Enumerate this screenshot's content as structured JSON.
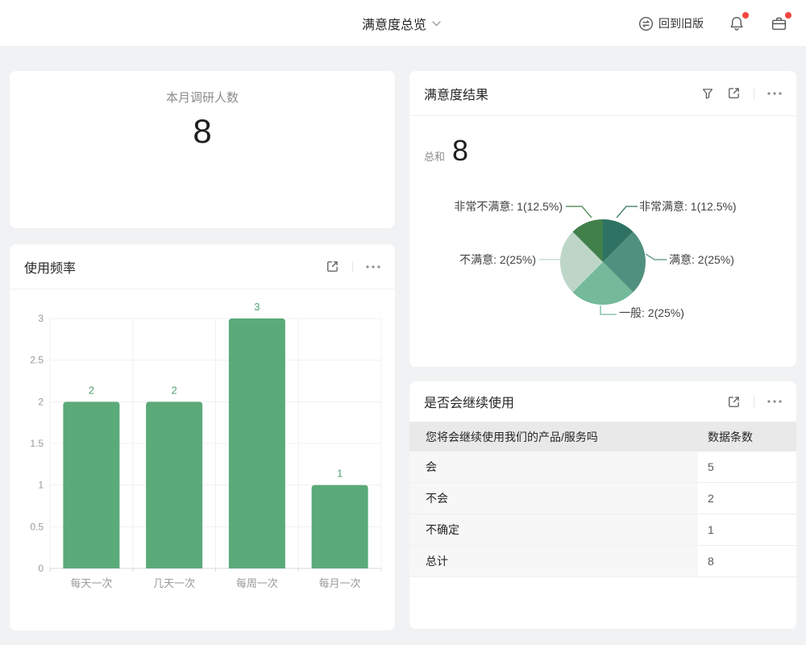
{
  "header": {
    "title": "满意度总览",
    "title_icon": "chevron-down-icon",
    "back_to_old_label": "回到旧版",
    "back_to_old_icon": "switch-version-icon",
    "notification_icon": "bell-icon",
    "workbench_icon": "briefcase-icon",
    "notification_badge": true,
    "workbench_badge": true,
    "badge_color": "#f5453d"
  },
  "cards": {
    "monthly": {
      "title": "本月调研人数",
      "value": "8"
    }
  },
  "card_action_icons": [
    "filter-icon",
    "export-icon",
    "more-icon"
  ],
  "colors": {
    "background": "#f1f2f4",
    "card": "#ffffff",
    "bar_green": "#5baa7a",
    "value_label_green": "#53a274",
    "axis_text": "#999999",
    "gridline": "#f0f0f0",
    "axis_line": "#d9d9d9"
  },
  "chart_data": [
    {
      "type": "bar",
      "title": "使用频率",
      "categories": [
        "每天一次",
        "几天一次",
        "每周一次",
        "每月一次"
      ],
      "values": [
        2,
        2,
        3,
        1
      ],
      "xlabel": "",
      "ylabel": "",
      "ylim": [
        0,
        3
      ],
      "ytick_interval": 0.5,
      "grid": true,
      "legend": "none",
      "bar_color": "#5baa7a",
      "value_label_color": "#53a274"
    },
    {
      "type": "pie",
      "title": "满意度结果",
      "total_label": "总和",
      "total_value": "8",
      "start_angle": "12 o'clock, clockwise",
      "slices": [
        {
          "name": "非常满意",
          "value": 1,
          "percent": "12.5%",
          "label": "非常满意: 1(12.5%)",
          "color": "#2e7263"
        },
        {
          "name": "满意",
          "value": 2,
          "percent": "25%",
          "label": "满意: 2(25%)",
          "color": "#4f917e"
        },
        {
          "name": "一般",
          "value": 2,
          "percent": "25%",
          "label": "一般: 2(25%)",
          "color": "#74b99a"
        },
        {
          "name": "不满意",
          "value": 2,
          "percent": "25%",
          "label": "不满意: 2(25%)",
          "color": "#bdd6c8"
        },
        {
          "name": "非常不满意",
          "value": 1,
          "percent": "12.5%",
          "label": "非常不满意: 1(12.5%)",
          "color": "#41804a"
        }
      ]
    },
    {
      "type": "table",
      "title": "是否会继续使用",
      "columns": [
        "您将会继续使用我们的产品/服务吗",
        "数据条数"
      ],
      "rows": [
        [
          "会",
          "5"
        ],
        [
          "不会",
          "2"
        ],
        [
          "不确定",
          "1"
        ],
        [
          "总计",
          "8"
        ]
      ]
    }
  ]
}
